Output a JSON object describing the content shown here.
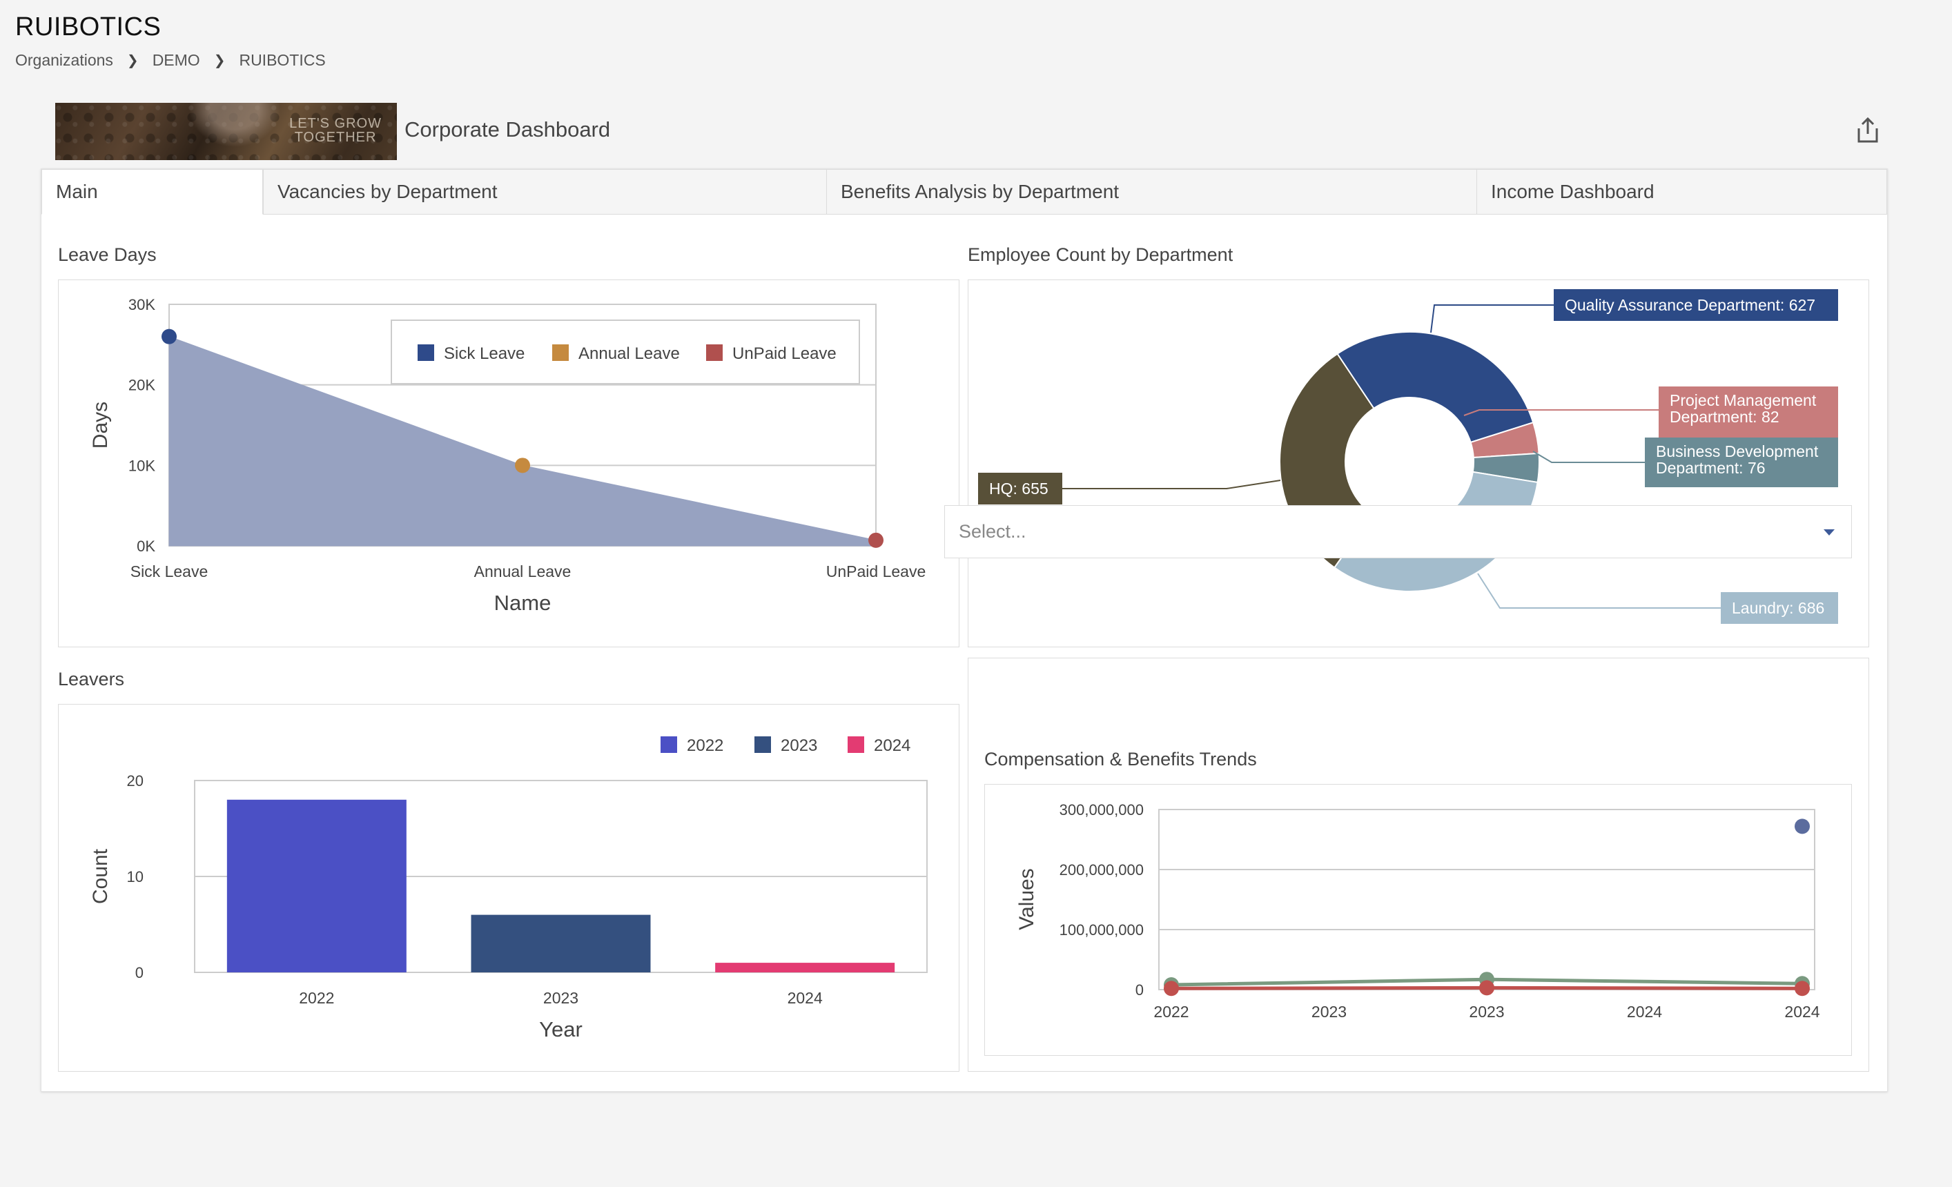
{
  "app": {
    "title": "RUIBOTICS"
  },
  "breadcrumb": [
    "Organizations",
    "DEMO",
    "RUIBOTICS"
  ],
  "banner": {
    "line1": "LET'S GROW",
    "line2": "TOGETHER"
  },
  "dashboard": {
    "title": "Corporate Dashboard",
    "share_icon": "share-export-icon"
  },
  "tabs": [
    {
      "label": "Main",
      "active": true
    },
    {
      "label": "Vacancies by Department",
      "active": false
    },
    {
      "label": "Benefits Analysis by Department",
      "active": false
    },
    {
      "label": "Income Dashboard",
      "active": false
    }
  ],
  "filter": {
    "placeholder": "Select..."
  },
  "colors": {
    "sick": "#2e4a8a",
    "annual": "#c58a3f",
    "unpaid": "#b0504e",
    "area": "#97a2c1",
    "bar2022": "#4b50c5",
    "bar2023": "#34507f",
    "bar2024": "#e33b72",
    "qa": "#2c4a86",
    "pm": "#c87c7c",
    "bd": "#6a8b95",
    "laundry": "#a3bccc",
    "hq": "#585038"
  },
  "chart_data": [
    {
      "id": "leave_days",
      "type": "area",
      "title": "Leave Days",
      "xlabel": "Name",
      "ylabel": "Days",
      "categories": [
        "Sick Leave",
        "Annual Leave",
        "UnPaid Leave"
      ],
      "values": [
        26000,
        10000,
        700
      ],
      "ylim": [
        0,
        30000
      ],
      "yticks": [
        "0K",
        "10K",
        "20K",
        "30K"
      ],
      "legend": [
        "Sick Leave",
        "Annual Leave",
        "UnPaid Leave"
      ],
      "legend_position": "top-right",
      "grid": true
    },
    {
      "id": "employee_count",
      "type": "pie",
      "title": "Employee Count by Department",
      "slices": [
        {
          "label": "Quality Assurance Department",
          "value": 627,
          "text": "Quality Assurance Department: 627"
        },
        {
          "label": "Project Management Department",
          "value": 82,
          "text1": "Project Management",
          "text2": "Department: 82"
        },
        {
          "label": "Business Development Department",
          "value": 76,
          "text1": "Business Development",
          "text2": "Department: 76"
        },
        {
          "label": "Laundry",
          "value": 686,
          "text": "Laundry: 686"
        },
        {
          "label": "HQ",
          "value": 655,
          "text": "HQ: 655"
        }
      ]
    },
    {
      "id": "leavers",
      "type": "bar",
      "title": "Leavers",
      "xlabel": "Year",
      "ylabel": "Count",
      "categories": [
        "2022",
        "2023",
        "2024"
      ],
      "values": [
        18,
        6,
        1
      ],
      "ylim": [
        0,
        20
      ],
      "yticks": [
        "0",
        "10",
        "20"
      ],
      "legend": [
        "2022",
        "2023",
        "2024"
      ],
      "legend_position": "top-right",
      "grid": true
    },
    {
      "id": "comp_benefits",
      "type": "line",
      "title": "Compensation & Benefits Trends",
      "ylabel": "Values",
      "categories": [
        "2022",
        "2023",
        "2023",
        "2024",
        "2024"
      ],
      "ylim": [
        0,
        300000000
      ],
      "yticks": [
        "0",
        "100,000,000",
        "200,000,000",
        "300,000,000"
      ],
      "series": [
        {
          "color": "#7a9a80",
          "points": [
            [
              0,
              8000000
            ],
            [
              2,
              17000000
            ],
            [
              4,
              10000000
            ]
          ]
        },
        {
          "color": "#c0504d",
          "points": [
            [
              0,
              2000000
            ],
            [
              2,
              3000000
            ],
            [
              4,
              2000000
            ]
          ]
        },
        {
          "color": "#5b6c9e",
          "points": [
            [
              4,
              272000000
            ]
          ]
        }
      ],
      "grid": true
    }
  ]
}
